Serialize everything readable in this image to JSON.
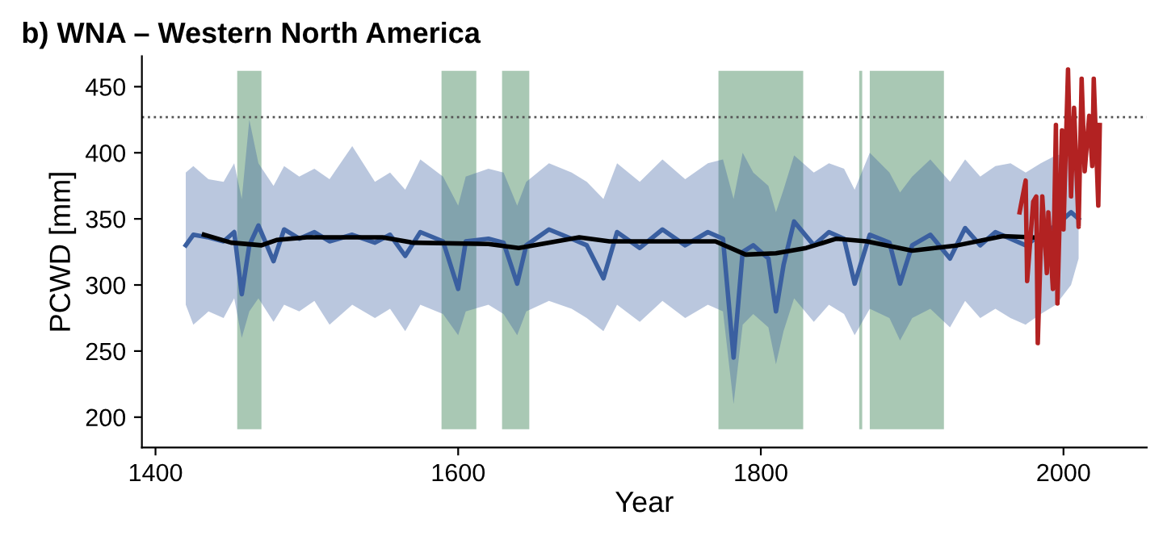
{
  "chart_data": {
    "type": "line",
    "title": "b) WNA – Western North America",
    "xlabel": "Year",
    "ylabel": "PCWD [mm]",
    "xlim": [
      1391,
      2055
    ],
    "xticks": [
      1400,
      1600,
      1800,
      2000
    ],
    "ylim": [
      177,
      473
    ],
    "yticks": [
      200,
      250,
      300,
      350,
      400,
      450
    ],
    "grid": false,
    "legend": false,
    "series": [
      {
        "color": "#3a5fa0",
        "x": [
          1420,
          1425,
          1435,
          1445,
          1452,
          1457,
          1462,
          1468,
          1478,
          1485,
          1495,
          1505,
          1515,
          1530,
          1545,
          1555,
          1565,
          1575,
          1590,
          1600,
          1605,
          1620,
          1630,
          1639,
          1645,
          1660,
          1675,
          1685,
          1696,
          1705,
          1720,
          1735,
          1750,
          1765,
          1775,
          1782,
          1788,
          1795,
          1805,
          1810,
          1815,
          1822,
          1835,
          1845,
          1855,
          1862,
          1872,
          1885,
          1892,
          1900,
          1912,
          1925,
          1935,
          1945,
          1955,
          1965,
          1975,
          1985,
          1995,
          2005,
          2010
        ],
        "values": [
          330,
          338,
          336,
          333,
          340,
          293,
          330,
          345,
          318,
          342,
          335,
          340,
          333,
          338,
          332,
          338,
          322,
          340,
          333,
          297,
          333,
          335,
          332,
          301,
          330,
          342,
          335,
          330,
          305,
          340,
          328,
          342,
          330,
          340,
          335,
          245,
          325,
          330,
          320,
          280,
          315,
          348,
          330,
          340,
          335,
          301,
          338,
          332,
          301,
          330,
          338,
          320,
          343,
          330,
          340,
          335,
          330,
          338,
          345,
          355,
          350
        ],
        "lower": [
          285,
          270,
          280,
          275,
          290,
          260,
          280,
          290,
          272,
          285,
          280,
          288,
          270,
          285,
          275,
          282,
          265,
          285,
          278,
          262,
          280,
          285,
          278,
          262,
          280,
          288,
          282,
          275,
          265,
          285,
          272,
          288,
          275,
          285,
          280,
          210,
          270,
          278,
          268,
          240,
          265,
          290,
          272,
          285,
          278,
          262,
          282,
          275,
          258,
          275,
          282,
          268,
          288,
          275,
          282,
          275,
          270,
          278,
          285,
          300,
          320
        ],
        "upper": [
          385,
          390,
          380,
          378,
          392,
          365,
          425,
          392,
          375,
          390,
          382,
          388,
          380,
          405,
          378,
          385,
          372,
          395,
          382,
          360,
          382,
          388,
          385,
          360,
          378,
          392,
          385,
          378,
          365,
          392,
          378,
          395,
          380,
          392,
          395,
          365,
          400,
          385,
          375,
          355,
          372,
          398,
          385,
          392,
          388,
          372,
          400,
          385,
          370,
          382,
          395,
          378,
          395,
          382,
          390,
          392,
          385,
          392,
          398,
          400,
          385
        ]
      },
      {
        "color": "#000000",
        "x": [
          1432,
          1450,
          1470,
          1480,
          1500,
          1550,
          1570,
          1620,
          1640,
          1680,
          1700,
          1770,
          1790,
          1810,
          1830,
          1850,
          1870,
          1900,
          1930,
          1960,
          1980
        ],
        "values": [
          338,
          332,
          330,
          334,
          336,
          336,
          332,
          331,
          328,
          336,
          333,
          333,
          323,
          324,
          328,
          335,
          333,
          326,
          330,
          337,
          336
        ]
      },
      {
        "color": "#b22222",
        "x": [
          1971,
          1975,
          1976,
          1980,
          1982,
          1983,
          1986,
          1989,
          1990,
          1993,
          1995,
          1996,
          1999,
          2000,
          2003,
          2005,
          2007,
          2010,
          2012,
          2014,
          2017,
          2019,
          2020,
          2023,
          2024
        ],
        "values": [
          355,
          379,
          303,
          363,
          367,
          256,
          367,
          309,
          355,
          297,
          421,
          286,
          417,
          342,
          463,
          367,
          434,
          344,
          456,
          386,
          428,
          390,
          456,
          360,
          421
        ]
      }
    ],
    "ref_lines": [
      {
        "axis": "y",
        "value": 427,
        "color": "#555555",
        "line_style": "dotted"
      }
    ],
    "bands": [
      {
        "axis": "x",
        "from": 1454,
        "to": 1470,
        "color": "#a9c8b4"
      },
      {
        "axis": "x",
        "from": 1589,
        "to": 1612,
        "color": "#a9c8b4"
      },
      {
        "axis": "x",
        "from": 1629,
        "to": 1647,
        "color": "#a9c8b4"
      },
      {
        "axis": "x",
        "from": 1772,
        "to": 1828,
        "color": "#a9c8b4"
      },
      {
        "axis": "x",
        "from": 1865,
        "to": 1867,
        "color": "#a9c8b4"
      },
      {
        "axis": "x",
        "from": 1872,
        "to": 1921,
        "color": "#a9c8b4"
      }
    ]
  }
}
